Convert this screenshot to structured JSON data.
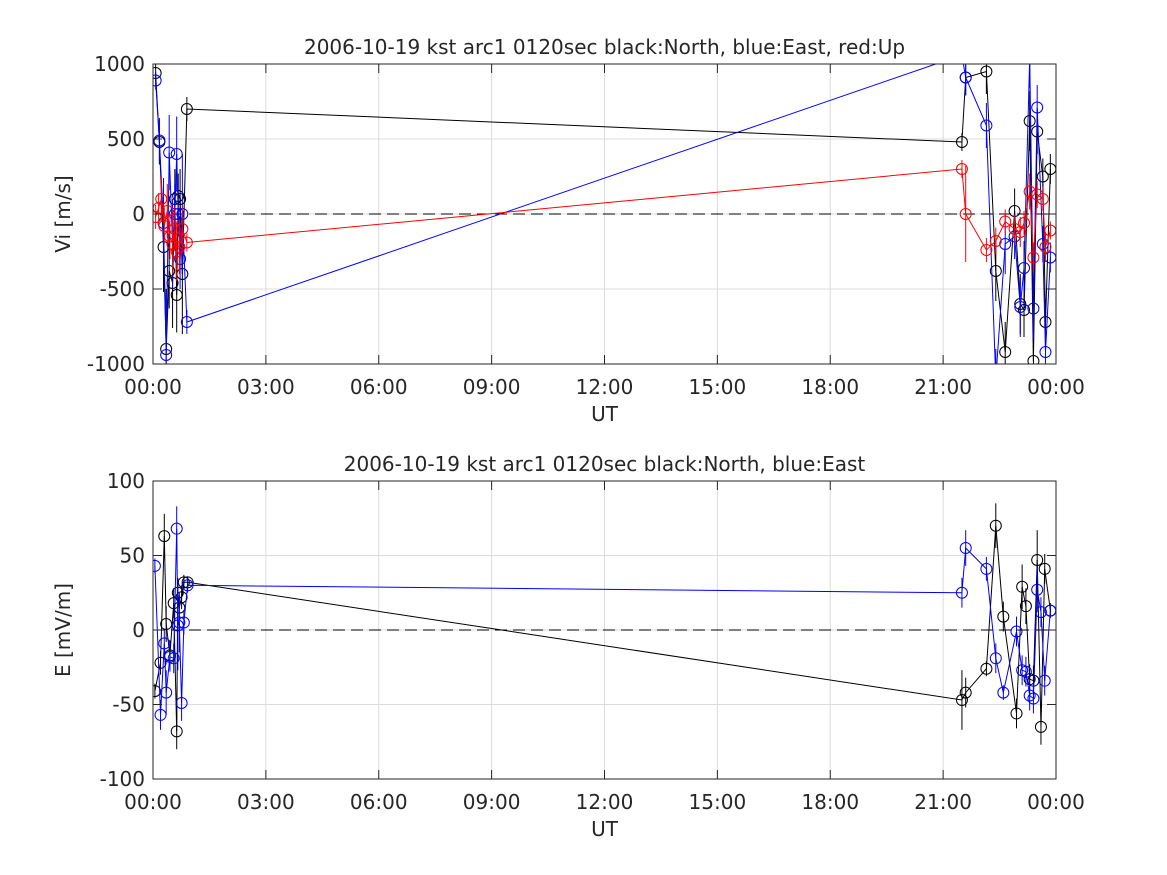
{
  "chart_data": [
    {
      "type": "line",
      "title": "2006-10-19 kst arc1 0120sec black:North, blue:East, red:Up",
      "xlabel": "UT",
      "ylabel": "Vi [m/s]",
      "xlim": [
        0,
        24
      ],
      "ylim": [
        -1000,
        1000
      ],
      "xticks": [
        0,
        3,
        6,
        9,
        12,
        15,
        18,
        21,
        24
      ],
      "xtick_labels": [
        "00:00",
        "03:00",
        "06:00",
        "09:00",
        "12:00",
        "15:00",
        "18:00",
        "21:00",
        "00:00"
      ],
      "yticks": [
        -1000,
        -500,
        0,
        500,
        1000
      ],
      "ytick_labels": [
        "-1000",
        "-500",
        "0",
        "500",
        "1000"
      ],
      "grid": true,
      "reference_line": 0,
      "series": [
        {
          "name": "North",
          "color": "#000000",
          "x": [
            0.07,
            0.17,
            0.28,
            0.35,
            0.43,
            0.52,
            0.58,
            0.63,
            0.67,
            0.72,
            0.78,
            0.9,
            21.5,
            21.6,
            22.15,
            22.4,
            22.65,
            22.9,
            23.05,
            23.15,
            23.3,
            23.4,
            23.5,
            23.65,
            23.72,
            23.85
          ],
          "y": [
            940,
            480,
            -220,
            -900,
            -380,
            -460,
            100,
            -540,
            120,
            100,
            -400,
            700,
            480,
            910,
            950,
            -380,
            -920,
            20,
            -600,
            -640,
            620,
            -980,
            550,
            250,
            -720,
            300
          ],
          "err": [
            60,
            150,
            300,
            400,
            250,
            300,
            200,
            250,
            150,
            200,
            400,
            80,
            60,
            120,
            150,
            200,
            200,
            150,
            200,
            180,
            200,
            200,
            150,
            120,
            150,
            100
          ]
        },
        {
          "name": "East",
          "color": "#0000ff",
          "x": [
            0.07,
            0.17,
            0.28,
            0.35,
            0.43,
            0.52,
            0.58,
            0.63,
            0.67,
            0.72,
            0.78,
            0.9,
            21.5,
            21.6,
            22.15,
            22.4,
            22.65,
            22.9,
            23.05,
            23.15,
            23.3,
            23.4,
            23.5,
            23.65,
            23.72,
            23.85
          ],
          "y": [
            890,
            490,
            -60,
            -940,
            410,
            -200,
            0,
            400,
            0,
            -300,
            0,
            -720,
            1060,
            910,
            590,
            -1100,
            -200,
            -150,
            -620,
            -360,
            1040,
            -630,
            710,
            -200,
            -920,
            -290
          ],
          "err": [
            60,
            150,
            300,
            400,
            250,
            300,
            200,
            250,
            150,
            200,
            400,
            80,
            60,
            120,
            150,
            200,
            200,
            150,
            200,
            180,
            200,
            200,
            150,
            120,
            150,
            100
          ]
        },
        {
          "name": "Up",
          "color": "#ff0000",
          "x": [
            0.07,
            0.15,
            0.22,
            0.3,
            0.38,
            0.45,
            0.52,
            0.58,
            0.63,
            0.7,
            0.78,
            0.9,
            21.5,
            21.6,
            22.15,
            22.4,
            22.65,
            22.9,
            23.05,
            23.15,
            23.3,
            23.4,
            23.5,
            23.65,
            23.72,
            23.85
          ],
          "y": [
            -20,
            40,
            100,
            -80,
            20,
            -150,
            -200,
            -100,
            -250,
            -220,
            -100,
            -190,
            300,
            0,
            -240,
            -180,
            -50,
            -100,
            -120,
            -60,
            150,
            -290,
            130,
            100,
            -220,
            -110
          ],
          "err": [
            80,
            100,
            150,
            120,
            180,
            150,
            200,
            150,
            200,
            180,
            150,
            60,
            60,
            320,
            80,
            90,
            80,
            90,
            100,
            80,
            120,
            100,
            90,
            80,
            100,
            60
          ]
        }
      ]
    },
    {
      "type": "line",
      "title": "2006-10-19 kst arc1 0120sec black:North, blue:East",
      "xlabel": "UT",
      "ylabel": "E [mV/m]",
      "xlim": [
        0,
        24
      ],
      "ylim": [
        -100,
        100
      ],
      "xticks": [
        0,
        3,
        6,
        9,
        12,
        15,
        18,
        21,
        24
      ],
      "xtick_labels": [
        "00:00",
        "03:00",
        "06:00",
        "09:00",
        "12:00",
        "15:00",
        "18:00",
        "21:00",
        "00:00"
      ],
      "yticks": [
        -100,
        -50,
        0,
        50,
        100
      ],
      "ytick_labels": [
        "-100",
        "-50",
        "0",
        "50",
        "100"
      ],
      "grid": true,
      "reference_line": 0,
      "series": [
        {
          "name": "North",
          "color": "#000000",
          "x": [
            0.05,
            0.2,
            0.3,
            0.35,
            0.45,
            0.55,
            0.63,
            0.66,
            0.7,
            0.76,
            0.82,
            0.92,
            21.5,
            21.6,
            22.15,
            22.4,
            22.6,
            22.95,
            23.1,
            23.2,
            23.3,
            23.4,
            23.5,
            23.6,
            23.7,
            23.85
          ],
          "y": [
            -41,
            -22,
            63,
            4,
            -17,
            18,
            -68,
            25,
            15,
            22,
            32,
            32,
            -47,
            -42,
            -26,
            70,
            9,
            -56,
            29,
            16,
            -33,
            -34,
            47,
            -65,
            41,
            13
          ],
          "err": [
            5,
            8,
            15,
            12,
            10,
            10,
            12,
            10,
            8,
            8,
            5,
            4,
            20,
            10,
            5,
            15,
            10,
            10,
            15,
            12,
            10,
            10,
            20,
            12,
            10,
            5
          ]
        },
        {
          "name": "East",
          "color": "#0000ff",
          "x": [
            0.05,
            0.2,
            0.3,
            0.35,
            0.45,
            0.55,
            0.63,
            0.66,
            0.7,
            0.76,
            0.82,
            0.92,
            21.5,
            21.6,
            22.15,
            22.4,
            22.6,
            22.95,
            23.1,
            23.2,
            23.3,
            23.4,
            23.5,
            23.6,
            23.7,
            23.85
          ],
          "y": [
            43,
            -57,
            -9,
            -42,
            -18,
            -19,
            68,
            3,
            5,
            -49,
            5,
            30,
            25,
            55,
            41,
            -19,
            -42,
            -1,
            -27,
            -28,
            -44,
            -46,
            27,
            12,
            -34,
            13
          ],
          "err": [
            5,
            10,
            10,
            15,
            10,
            10,
            15,
            30,
            20,
            12,
            8,
            5,
            10,
            12,
            8,
            10,
            5,
            10,
            10,
            10,
            10,
            10,
            15,
            10,
            10,
            5
          ]
        }
      ]
    }
  ]
}
